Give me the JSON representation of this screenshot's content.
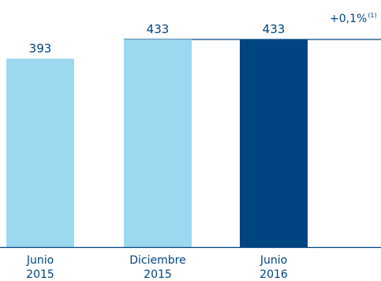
{
  "chart_data": {
    "type": "bar",
    "categories": [
      {
        "line1": "Junio",
        "line2": "2015"
      },
      {
        "line1": "Diciembre",
        "line2": "2015"
      },
      {
        "line1": "Junio",
        "line2": "2016"
      }
    ],
    "values": [
      393,
      433,
      433
    ],
    "value_labels": [
      "393",
      "433",
      "433"
    ],
    "colors": [
      "#9cd8f0",
      "#9cd8f0",
      "#004481"
    ],
    "annotation": {
      "text": "+0,1%",
      "note": "(1)"
    },
    "reference_line_value": 433,
    "ylim": [
      0,
      433
    ]
  },
  "colors": {
    "text": "#004481",
    "reference_line": "#004481",
    "axis": "#004481"
  }
}
